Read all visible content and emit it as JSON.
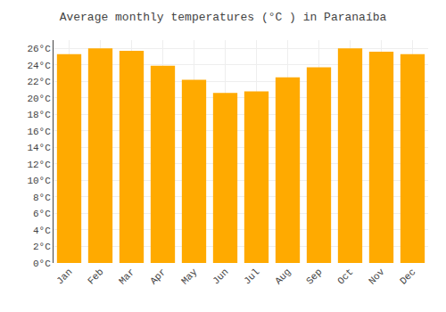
{
  "chart_data": {
    "type": "bar",
    "title": "Average monthly temperatures (°C ) in Paranaíba",
    "categories": [
      "Jan",
      "Feb",
      "Mar",
      "Apr",
      "May",
      "Jun",
      "Jul",
      "Aug",
      "Sep",
      "Oct",
      "Nov",
      "Dec"
    ],
    "values": [
      25.3,
      26.0,
      25.7,
      23.9,
      22.2,
      20.6,
      20.8,
      22.5,
      23.7,
      26.0,
      25.6,
      25.3
    ],
    "color": "#FFAA00",
    "ylim": [
      0,
      27
    ],
    "yticks": [
      {
        "value": 0,
        "label": "0°C"
      },
      {
        "value": 2,
        "label": "2°C"
      },
      {
        "value": 4,
        "label": "4°C"
      },
      {
        "value": 6,
        "label": "6°C"
      },
      {
        "value": 8,
        "label": "8°C"
      },
      {
        "value": 10,
        "label": "10°C"
      },
      {
        "value": 12,
        "label": "12°C"
      },
      {
        "value": 14,
        "label": "14°C"
      },
      {
        "value": 16,
        "label": "16°C"
      },
      {
        "value": 18,
        "label": "18°C"
      },
      {
        "value": 20,
        "label": "20°C"
      },
      {
        "value": 22,
        "label": "22°C"
      },
      {
        "value": 24,
        "label": "24°C"
      },
      {
        "value": 26,
        "label": "26°C"
      }
    ],
    "grid": true
  }
}
